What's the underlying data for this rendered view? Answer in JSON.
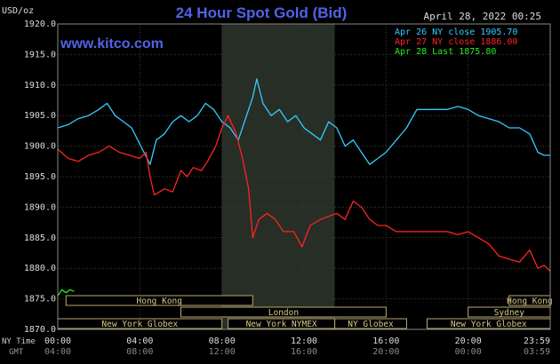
{
  "header": {
    "unit": "USD/oz",
    "title": "24 Hour Spot Gold (Bid)",
    "date": "April 28, 2022 00:25",
    "watermark": "www.kitco.com"
  },
  "legend": [
    {
      "label": "Apr 26 NY close 1905.70",
      "color": "#33ccff"
    },
    {
      "label": "Apr 27 NY close 1886.00",
      "color": "#ff2222"
    },
    {
      "label": "Apr 28 Last 1875.80",
      "color": "#22ee22"
    }
  ],
  "sessions": [
    {
      "label": "Hong Kong",
      "start": 0.4,
      "end": 9.5,
      "row": 0
    },
    {
      "label": "Hong Kong",
      "start": 22.0,
      "end": 24.0,
      "row": 0
    },
    {
      "label": "London",
      "start": 6.0,
      "end": 16.0,
      "row": 1
    },
    {
      "label": "Sydney",
      "start": 20.0,
      "end": 24.0,
      "row": 1
    },
    {
      "label": "New York Globex",
      "start": 0.0,
      "end": 8.0,
      "row": 2
    },
    {
      "label": "New York NYMEX",
      "start": 8.3,
      "end": 13.5,
      "row": 2
    },
    {
      "label": "NY Globex",
      "start": 13.5,
      "end": 17.0,
      "row": 2
    },
    {
      "label": "New York Globex",
      "start": 18.0,
      "end": 24.0,
      "row": 2
    }
  ],
  "xaxis": {
    "ny_label": "NY Time",
    "gmt_label": "GMT",
    "ticks": [
      {
        "ny": "00:00",
        "gmt": "04:00",
        "hour": 0
      },
      {
        "ny": "04:00",
        "gmt": "08:00",
        "hour": 4
      },
      {
        "ny": "08:00",
        "gmt": "12:00",
        "hour": 8
      },
      {
        "ny": "12:00",
        "gmt": "16:00",
        "hour": 12
      },
      {
        "ny": "16:00",
        "gmt": "20:00",
        "hour": 16
      },
      {
        "ny": "20:00",
        "gmt": "00:00",
        "hour": 20
      },
      {
        "ny": "23:59",
        "gmt": "03:59",
        "hour": 24
      }
    ]
  },
  "chart_data": {
    "type": "line",
    "title": "24 Hour Spot Gold (Bid)",
    "ylabel": "USD/oz",
    "xlabel": "NY Time",
    "x_range_hours": [
      0,
      24
    ],
    "ylim": [
      1870,
      1920
    ],
    "yticks": [
      1870,
      1875,
      1880,
      1885,
      1890,
      1895,
      1900,
      1905,
      1910,
      1915,
      1920
    ],
    "ytick_labels": [
      "1870.0",
      "1875.0",
      "1880.0",
      "1885.0",
      "1890.0",
      "1895.0",
      "1900.0",
      "1905.0",
      "1910.0",
      "1915.0",
      "1920.0"
    ],
    "highlight_hours": [
      8,
      13.5
    ],
    "grid": true,
    "series": [
      {
        "name": "Apr 26 NY close 1905.70",
        "color": "#33ccff",
        "points": [
          [
            0,
            1903
          ],
          [
            0.5,
            1903.5
          ],
          [
            1,
            1904.5
          ],
          [
            1.5,
            1905
          ],
          [
            2,
            1906
          ],
          [
            2.4,
            1907
          ],
          [
            2.8,
            1905
          ],
          [
            3.2,
            1904
          ],
          [
            3.6,
            1903
          ],
          [
            3.9,
            1901
          ],
          [
            4.2,
            1899
          ],
          [
            4.5,
            1897
          ],
          [
            4.8,
            1901
          ],
          [
            5.2,
            1902
          ],
          [
            5.6,
            1904
          ],
          [
            6,
            1905
          ],
          [
            6.4,
            1904
          ],
          [
            6.8,
            1905
          ],
          [
            7.2,
            1907
          ],
          [
            7.6,
            1906
          ],
          [
            8,
            1904
          ],
          [
            8.4,
            1903
          ],
          [
            8.8,
            1901
          ],
          [
            9.2,
            1905
          ],
          [
            9.5,
            1908
          ],
          [
            9.7,
            1911
          ],
          [
            10,
            1907
          ],
          [
            10.4,
            1905
          ],
          [
            10.8,
            1906
          ],
          [
            11.2,
            1904
          ],
          [
            11.6,
            1905
          ],
          [
            12,
            1903
          ],
          [
            12.4,
            1902
          ],
          [
            12.8,
            1901
          ],
          [
            13.2,
            1904
          ],
          [
            13.6,
            1903
          ],
          [
            14,
            1900
          ],
          [
            14.4,
            1901
          ],
          [
            14.8,
            1899
          ],
          [
            15.2,
            1897
          ],
          [
            15.6,
            1898
          ],
          [
            16,
            1899
          ],
          [
            16.5,
            1901
          ],
          [
            17,
            1903
          ],
          [
            17.5,
            1906
          ],
          [
            18,
            1906
          ],
          [
            18.5,
            1906
          ],
          [
            19,
            1906
          ],
          [
            19.5,
            1906.5
          ],
          [
            20,
            1906
          ],
          [
            20.5,
            1905
          ],
          [
            21,
            1904.5
          ],
          [
            21.5,
            1904
          ],
          [
            22,
            1903
          ],
          [
            22.5,
            1903
          ],
          [
            23,
            1902
          ],
          [
            23.4,
            1899
          ],
          [
            23.7,
            1898.5
          ],
          [
            24,
            1898.5
          ]
        ]
      },
      {
        "name": "Apr 27 NY close 1886.00",
        "color": "#ff2222",
        "points": [
          [
            0,
            1899.5
          ],
          [
            0.5,
            1898
          ],
          [
            1,
            1897.5
          ],
          [
            1.5,
            1898.5
          ],
          [
            2,
            1899
          ],
          [
            2.5,
            1900
          ],
          [
            3,
            1899
          ],
          [
            3.5,
            1898.5
          ],
          [
            4,
            1898
          ],
          [
            4.3,
            1899
          ],
          [
            4.5,
            1895
          ],
          [
            4.7,
            1892
          ],
          [
            5.2,
            1893
          ],
          [
            5.6,
            1892.5
          ],
          [
            6,
            1896
          ],
          [
            6.3,
            1895
          ],
          [
            6.6,
            1896.5
          ],
          [
            7,
            1896
          ],
          [
            7.3,
            1897.5
          ],
          [
            7.7,
            1900
          ],
          [
            8,
            1903
          ],
          [
            8.3,
            1905
          ],
          [
            8.7,
            1902
          ],
          [
            9,
            1898
          ],
          [
            9.3,
            1893
          ],
          [
            9.5,
            1885
          ],
          [
            9.8,
            1888
          ],
          [
            10.2,
            1889
          ],
          [
            10.6,
            1888
          ],
          [
            11,
            1886
          ],
          [
            11.5,
            1886
          ],
          [
            11.9,
            1883.5
          ],
          [
            12.3,
            1887
          ],
          [
            12.8,
            1888
          ],
          [
            13.2,
            1888.5
          ],
          [
            13.6,
            1889
          ],
          [
            14,
            1888
          ],
          [
            14.4,
            1891
          ],
          [
            14.8,
            1890
          ],
          [
            15.2,
            1888
          ],
          [
            15.6,
            1887
          ],
          [
            16,
            1887
          ],
          [
            16.5,
            1886
          ],
          [
            17,
            1886
          ],
          [
            17.5,
            1886
          ],
          [
            18,
            1886
          ],
          [
            18.5,
            1886
          ],
          [
            19,
            1886
          ],
          [
            19.5,
            1885.5
          ],
          [
            20,
            1886
          ],
          [
            20.5,
            1885
          ],
          [
            21,
            1884
          ],
          [
            21.5,
            1882
          ],
          [
            22,
            1881.5
          ],
          [
            22.5,
            1881
          ],
          [
            23,
            1883
          ],
          [
            23.4,
            1880
          ],
          [
            23.7,
            1880.5
          ],
          [
            24,
            1879.5
          ]
        ]
      },
      {
        "name": "Apr 28 Last 1875.80",
        "color": "#22ee22",
        "points": [
          [
            0,
            1875.5
          ],
          [
            0.2,
            1876.5
          ],
          [
            0.4,
            1876
          ],
          [
            0.6,
            1876.5
          ],
          [
            0.8,
            1876.2
          ]
        ]
      }
    ]
  }
}
